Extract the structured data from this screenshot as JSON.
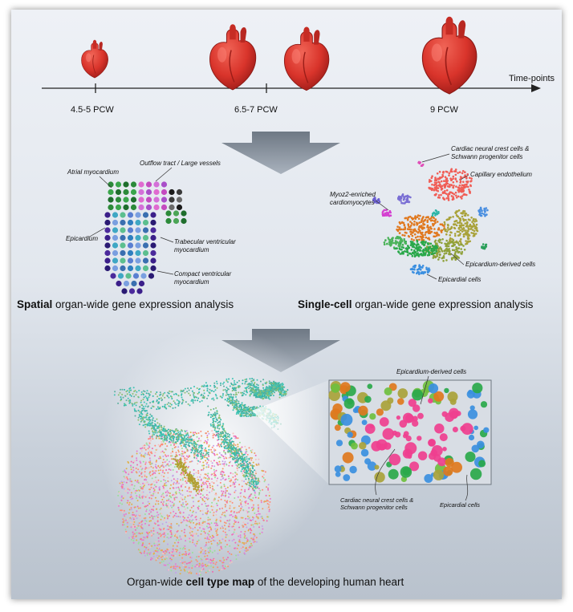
{
  "timeline": {
    "axis_label": "Time-points",
    "points": [
      "4.5-5 PCW",
      "6.5-7 PCW",
      "9 PCW"
    ]
  },
  "spatial": {
    "labels": {
      "atrial": "Atrial myocardium",
      "outflow": "Outflow tract / Large vessels",
      "epicardium": "Epicardium",
      "trabecular_1": "Trabecular ventricular",
      "trabecular_2": "myocardium",
      "compact_1": "Compact ventricular",
      "compact_2": "myocardium"
    },
    "caption_bold": "Spatial",
    "caption_rest": " organ-wide gene expression analysis"
  },
  "singlecell": {
    "labels": {
      "neural_1": "Cardiac neural crest cells &",
      "neural_2": "Schwann progenitor cells",
      "capillary": "Capillary endothelium",
      "myoz_1": "Myoz2-enriched",
      "myoz_2": "cardiomyocytes",
      "epi_derived": "Epicardium-derived cells",
      "epicardial": "Epicardial cells"
    },
    "caption_bold": "Single-cell",
    "caption_rest": " organ-wide gene expression analysis"
  },
  "map": {
    "labels": {
      "epi_derived": "Epicardium-derived cells",
      "neural_1": "Cardiac neural crest cells &",
      "neural_2": "Schwann progenitor cells",
      "epicardial": "Epicardial cells"
    },
    "caption_pre": "Organ-wide ",
    "caption_bold": "cell type map",
    "caption_post": " of the developing human heart"
  },
  "colors": {
    "heart": "#d9342b",
    "arrow": "#8a94a0",
    "pink": "#ef3f8f",
    "green": "#2aa84a",
    "blue": "#3b8fe0",
    "olive": "#a9a23a",
    "orange": "#e0781e",
    "teal": "#2fb6a8",
    "purple": "#3a2a8c",
    "coral": "#f05d55"
  },
  "icons": [
    "heart-icon",
    "down-arrow-icon"
  ]
}
